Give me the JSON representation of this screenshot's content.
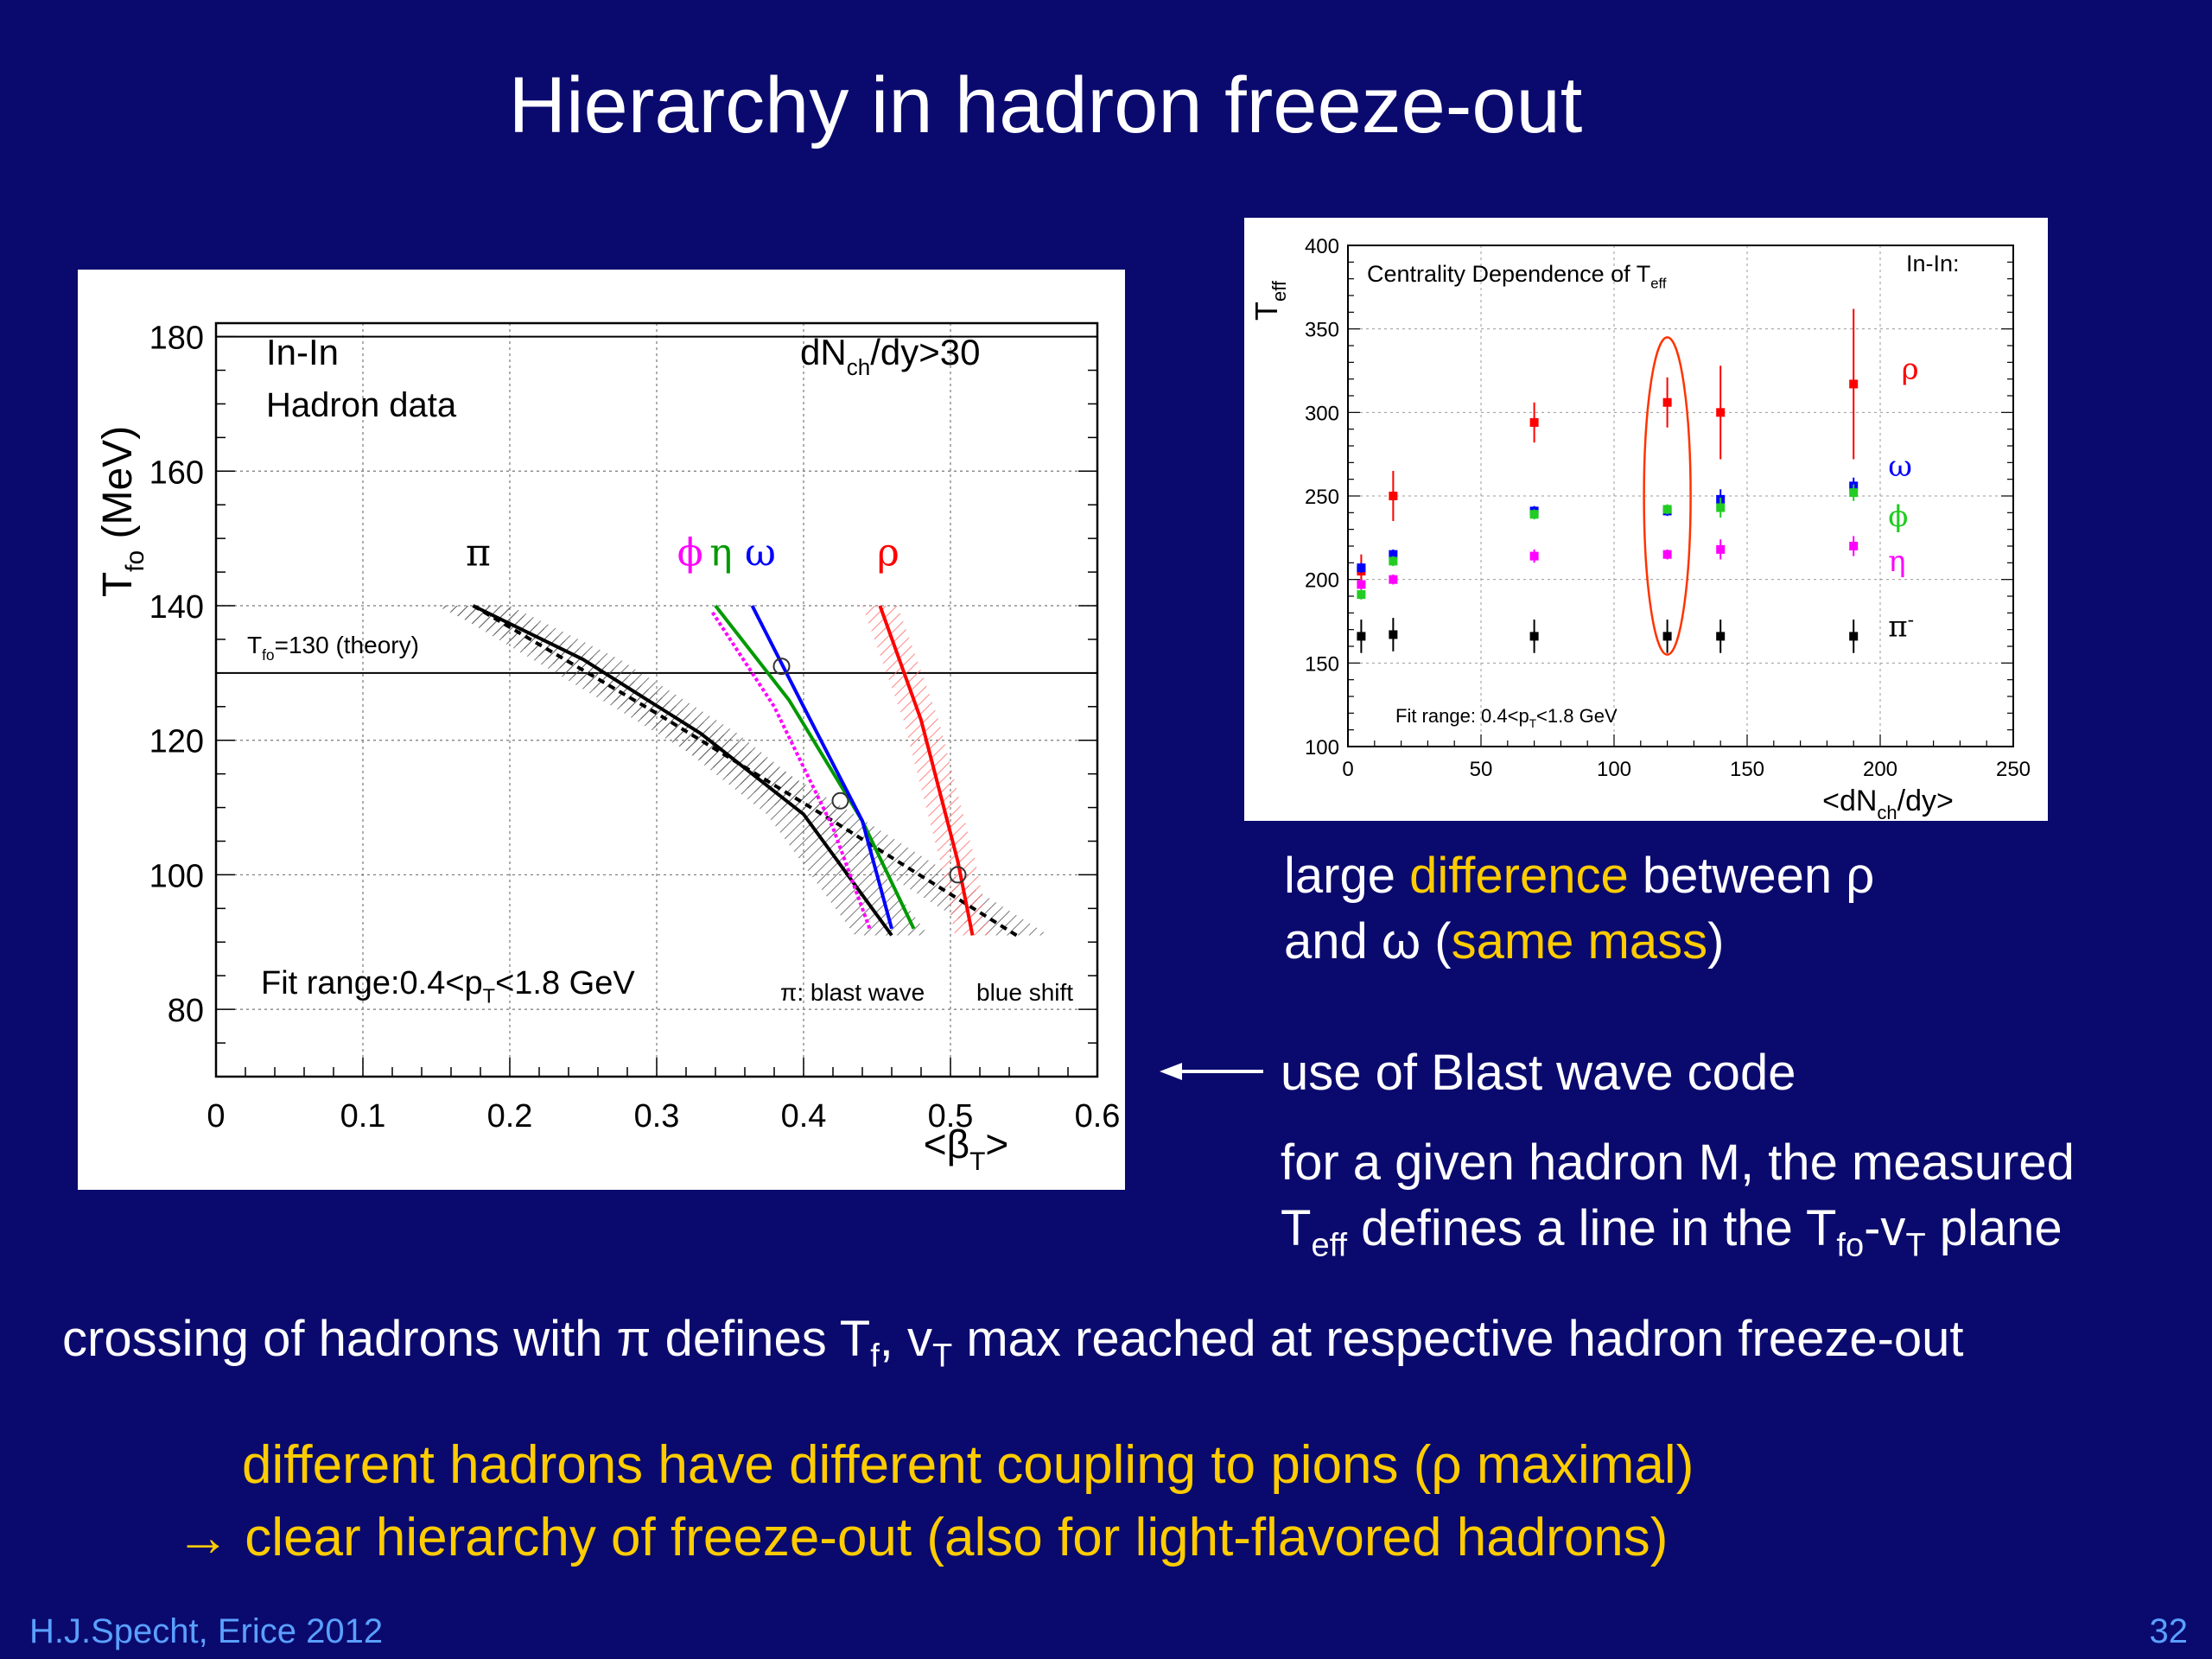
{
  "slide": {
    "title": "Hierarchy in hadron freeze-out",
    "footer_left": "H.J.Specht, Erice 2012",
    "page_number": "32",
    "colors": {
      "background": "#0a0a6e",
      "highlight": "#ffcc00",
      "footer": "#5aa0ff"
    }
  },
  "notes": {
    "note1_a": "large ",
    "note1_b": "difference",
    "note1_c": "  between ρ",
    "note1_d": "and ω (",
    "note1_e": "same mass",
    "note1_f": ")",
    "blast_wave": "use of Blast wave code",
    "given_hadron": "for a given hadron M, the measured",
    "teff_line_a": "T",
    "teff_line_sub1": "eff",
    "teff_line_b": "  defines a line in the T",
    "teff_line_sub2": "fo",
    "teff_line_c": "-v",
    "teff_line_sub3": "T",
    "teff_line_d": " plane",
    "crossing_a": "crossing of hadrons with π defines T",
    "crossing_sub1": "f",
    "crossing_b": ", v",
    "crossing_sub2": "T",
    "crossing_c": " max reached at respective hadron freeze-out",
    "coupling": "different hadrons have different coupling to pions (ρ maximal)",
    "hierarchy": "→ clear hierarchy of freeze-out (also for light-flavored hadrons)"
  },
  "chart_data": [
    {
      "type": "line",
      "ylabel": "T",
      "ylabel_sub": "fo",
      "ylabel_unit": " (MeV)",
      "xlabel": "<β",
      "xlabel_sub": "T",
      "xlabel_end": ">",
      "xlim": [
        0,
        0.6
      ],
      "ylim": [
        70,
        182
      ],
      "xticks": [
        0,
        0.1,
        0.2,
        0.3,
        0.4,
        0.5,
        0.6
      ],
      "xtick_labels": [
        "0",
        "0.1",
        "0.2",
        "0.3",
        "0.4",
        "0.5",
        "0.6"
      ],
      "yticks": [
        80,
        100,
        120,
        140,
        160,
        180
      ],
      "ytick_labels": [
        "80",
        "100",
        "120",
        "140",
        "160",
        "180"
      ],
      "grid": true,
      "texts": {
        "system": "In-In",
        "data_label": "Hadron data",
        "mult_a": "dN",
        "mult_sub": "ch",
        "mult_b": "/dy>30",
        "theory_a": "T",
        "theory_sub": "fo",
        "theory_b": "=130 (theory)",
        "fit_a": "Fit range:0.4<p",
        "fit_sub": "T",
        "fit_b": "<1.8 GeV",
        "bw_label": "π: blast wave",
        "blueshift": "blue shift"
      },
      "theory_line": 130,
      "series": [
        {
          "name": "π",
          "color": "#000000",
          "label_pos": [
            0.17,
            146
          ],
          "x": [
            0.175,
            0.25,
            0.33,
            0.4,
            0.46
          ],
          "y": [
            140,
            132,
            121,
            109,
            91
          ],
          "band": 0.025
        },
        {
          "name": "π",
          "color": "#000000",
          "dashed": true,
          "x": [
            0.175,
            0.3,
            0.42,
            0.545
          ],
          "y": [
            140,
            124,
            108,
            91
          ]
        },
        {
          "name": "ϕ",
          "color": "#ff00ff",
          "label_pos": [
            0.314,
            146
          ],
          "x": [
            0.338,
            0.38,
            0.42,
            0.445
          ],
          "y": [
            139,
            125,
            107,
            92
          ],
          "band": 0.0
        },
        {
          "name": "η",
          "color": "#009900",
          "label_pos": [
            0.336,
            146
          ],
          "x": [
            0.34,
            0.39,
            0.44,
            0.475
          ],
          "y": [
            140,
            126,
            108,
            92
          ],
          "band": 0.0
        },
        {
          "name": "ω",
          "color": "#0000ff",
          "label_pos": [
            0.36,
            146
          ],
          "x": [
            0.365,
            0.4,
            0.44,
            0.46
          ],
          "y": [
            140,
            125,
            108,
            92
          ],
          "band": 0.0
        },
        {
          "name": "ρ",
          "color": "#ff0000",
          "label_pos": [
            0.45,
            146
          ],
          "x": [
            0.452,
            0.48,
            0.505,
            0.515
          ],
          "y": [
            140,
            123,
            102,
            91
          ],
          "band": 0.012
        }
      ],
      "markers": [
        [
          0.385,
          131
        ],
        [
          0.425,
          111
        ],
        [
          0.505,
          100
        ]
      ]
    },
    {
      "type": "scatter",
      "title_a": "Centrality Dependence of T",
      "title_sub": "eff",
      "system": "In-In:",
      "ylabel": "T",
      "ylabel_sub": "eff",
      "xlabel_a": "<dN",
      "xlabel_sub": "ch",
      "xlabel_b": "/dy>",
      "xlim": [
        0,
        250
      ],
      "ylim": [
        100,
        400
      ],
      "xticks": [
        0,
        50,
        100,
        150,
        200,
        250
      ],
      "xtick_labels": [
        "0",
        "50",
        "100",
        "150",
        "200",
        "250"
      ],
      "yticks": [
        100,
        150,
        200,
        250,
        300,
        350,
        400
      ],
      "ytick_labels": [
        "100",
        "150",
        "200",
        "250",
        "300",
        "350",
        "400"
      ],
      "grid": true,
      "fit_a": "Fit range: 0.4<p",
      "fit_sub": "T",
      "fit_b": "<1.8 GeV",
      "highlight_ellipse": {
        "x": 120,
        "y_min": 155,
        "y_max": 345,
        "color": "#ff3300"
      },
      "series": [
        {
          "name": "ρ",
          "color": "#ff0000",
          "label_pos": [
            208,
            320
          ],
          "points": [
            [
              5,
              205,
              10
            ],
            [
              17,
              250,
              15
            ],
            [
              70,
              294,
              12
            ],
            [
              120,
              306,
              15
            ],
            [
              140,
              300,
              28
            ],
            [
              190,
              317,
              45
            ]
          ]
        },
        {
          "name": "ω",
          "color": "#0000ff",
          "label_pos": [
            203,
            262
          ],
          "points": [
            [
              5,
              207,
              3
            ],
            [
              17,
              215,
              3
            ],
            [
              70,
              241,
              3
            ],
            [
              120,
              241,
              3
            ],
            [
              140,
              248,
              6
            ],
            [
              190,
              256,
              5
            ]
          ]
        },
        {
          "name": "ϕ",
          "color": "#22cc22",
          "label_pos": [
            203,
            232
          ],
          "points": [
            [
              5,
              191,
              3
            ],
            [
              17,
              211,
              3
            ],
            [
              70,
              239,
              3
            ],
            [
              120,
              242,
              3
            ],
            [
              140,
              243,
              6
            ],
            [
              190,
              252,
              5
            ]
          ]
        },
        {
          "name": "η",
          "color": "#ff00ff",
          "label_pos": [
            203,
            205
          ],
          "points": [
            [
              5,
              197,
              3
            ],
            [
              17,
              200,
              3
            ],
            [
              70,
              214,
              4
            ],
            [
              120,
              215,
              3
            ],
            [
              140,
              218,
              6
            ],
            [
              190,
              220,
              6
            ]
          ]
        },
        {
          "name": "π",
          "name_sup": "-",
          "color": "#000000",
          "label_pos": [
            203,
            166
          ],
          "points": [
            [
              5,
              166,
              10
            ],
            [
              17,
              167,
              10
            ],
            [
              70,
              166,
              10
            ],
            [
              120,
              166,
              10
            ],
            [
              140,
              166,
              10
            ],
            [
              190,
              166,
              10
            ]
          ]
        }
      ]
    }
  ]
}
